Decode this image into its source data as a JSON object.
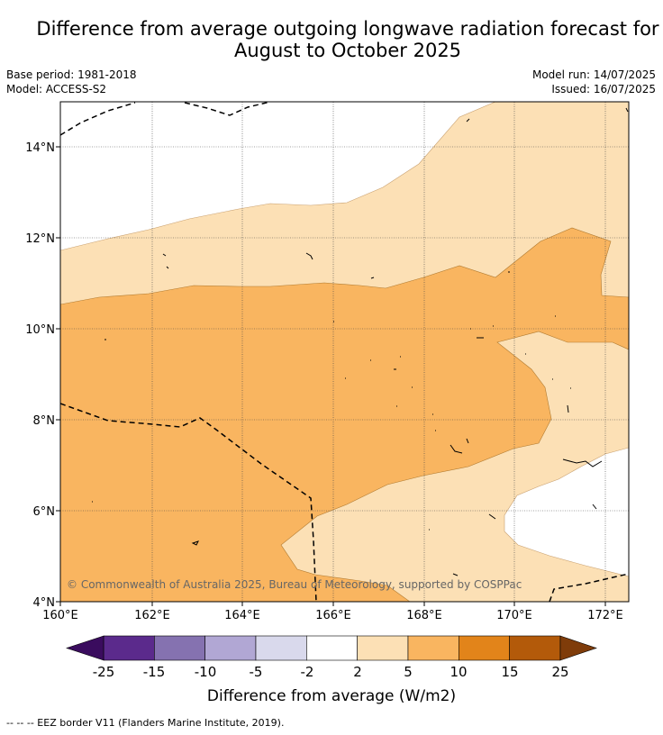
{
  "title_line1": "Difference from average outgoing longwave radiation forecast for",
  "title_line2": "August to October 2025",
  "base_period": "Base period: 1981-2018",
  "model": "Model: ACCESS-S2",
  "model_run": "Model run: 14/07/2025",
  "issued": "Issued: 16/07/2025",
  "copyright": "© Commonwealth of Australia 2025, Bureau of Meteorology, supported by COSPPac",
  "lon_ticks": [
    "160°E",
    "162°E",
    "164°E",
    "166°E",
    "168°E",
    "170°E",
    "172°E"
  ],
  "lat_ticks": [
    "14°N",
    "12°N",
    "10°N",
    "8°N",
    "6°N",
    "4°N"
  ],
  "colorbar": {
    "title": "Difference from average (W/m2)",
    "labels": [
      "-25",
      "-15",
      "-10",
      "-5",
      "-2",
      "2",
      "5",
      "10",
      "15",
      "25"
    ],
    "colors": [
      "#5b2a8c",
      "#8572b0",
      "#b1a7d4",
      "#d9d9ec",
      "#ffffff",
      "#fce0b5",
      "#f9b560",
      "#e2841a",
      "#b35a0a"
    ],
    "low_extend_color": "#3a0c5e",
    "high_extend_color": "#7f3c0a"
  },
  "footer": "--  --  -- EEZ border V11 (Flanders Marine Institute, 2019)."
}
